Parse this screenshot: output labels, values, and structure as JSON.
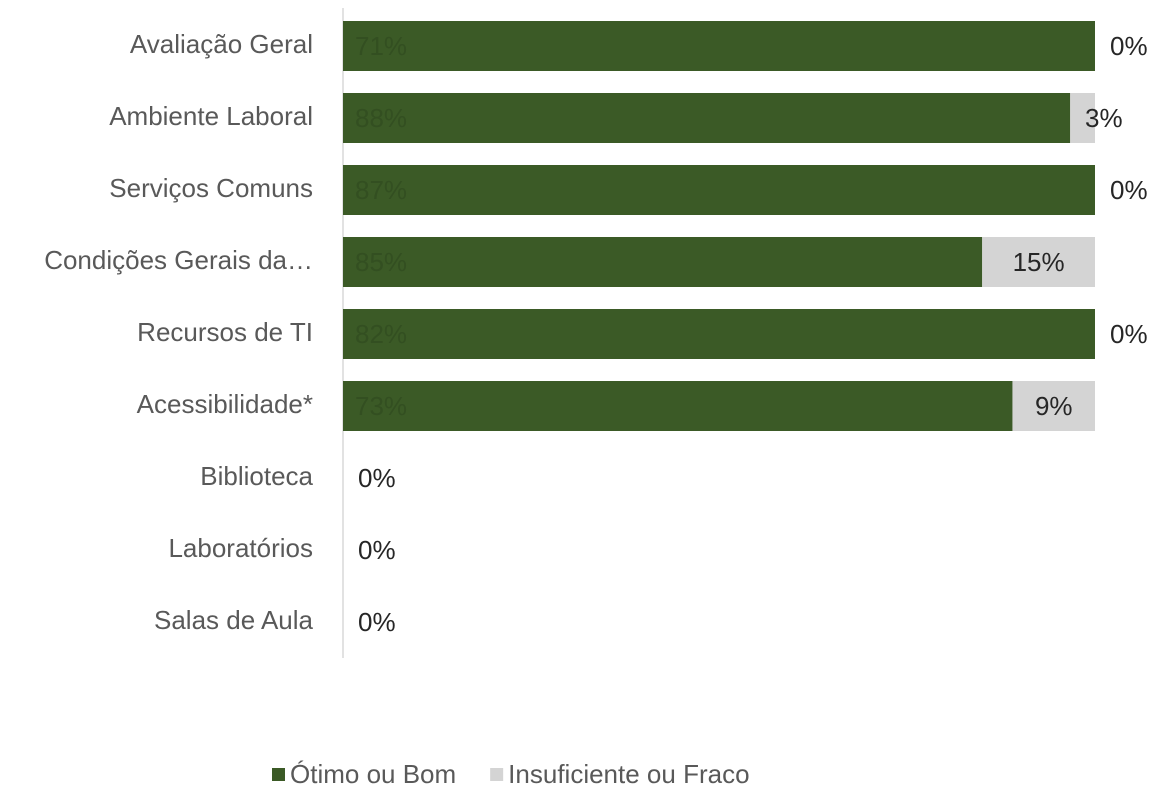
{
  "chart_data": {
    "type": "bar",
    "orientation": "horizontal",
    "stack": "percent",
    "categories": [
      "Avaliação Geral",
      "Ambiente Laboral",
      "Serviços Comuns",
      "Condições Gerais da…",
      "Recursos de TI",
      "Acessibilidade*",
      "Biblioteca",
      "Laboratórios",
      "Salas de Aula"
    ],
    "series": [
      {
        "name": "Ótimo ou Bom",
        "color": "#3b5a26",
        "label_color": "#334f21",
        "values": [
          71,
          88,
          87,
          85,
          82,
          73,
          0,
          0,
          0
        ],
        "value_labels": [
          "71%",
          "88%",
          "87%",
          "85%",
          "82%",
          "73%",
          "0%",
          "0%",
          "0%"
        ]
      },
      {
        "name": "Insuficiente ou Fraco",
        "color": "#d4d4d4",
        "label_color": "#262626",
        "values": [
          0,
          3,
          0,
          15,
          0,
          9,
          0,
          0,
          0
        ],
        "value_labels": [
          "0%",
          "3%",
          "0%",
          "15%",
          "0%",
          "9%",
          "0%",
          "0%",
          "0%"
        ]
      }
    ],
    "legend": "bottom"
  }
}
